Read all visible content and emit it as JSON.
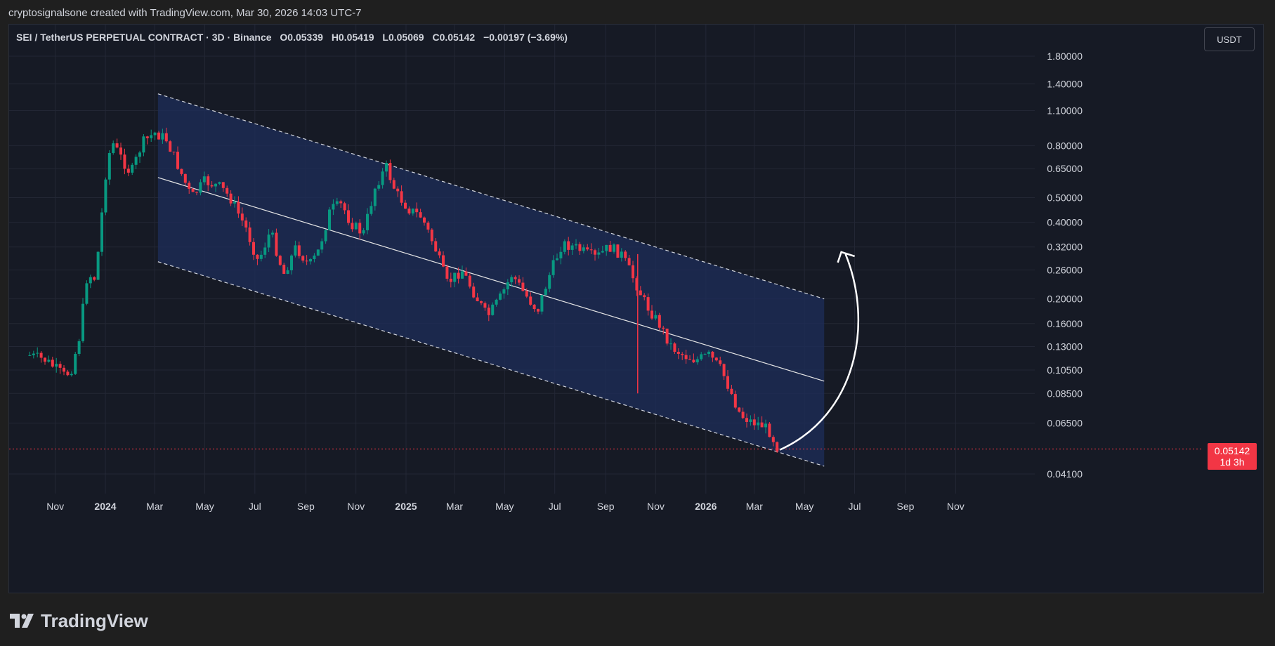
{
  "header": {
    "attribution": "cryptosignalsone created with TradingView.com, Mar 30, 2026 14:03 UTC-7"
  },
  "legend": {
    "symbol": "SEI / TetherUS PERPETUAL CONTRACT · 3D · Binance",
    "open": "O0.05339",
    "high": "H0.05419",
    "low": "L0.05069",
    "close": "C0.05142",
    "change": "−0.00197 (−3.69%)"
  },
  "currency": "USDT",
  "last_price": {
    "value": "0.05142",
    "countdown": "1d 3h"
  },
  "branding": {
    "logo_text": "TradingView"
  },
  "colors": {
    "up": "#089981",
    "down": "#f23645",
    "channel": "#1e2d5a",
    "background": "#161a25"
  },
  "chart_data": {
    "type": "candlestick",
    "y_scale": "log",
    "y_ticks": [
      "1.80000",
      "1.40000",
      "1.10000",
      "0.80000",
      "0.65000",
      "0.50000",
      "0.40000",
      "0.32000",
      "0.26000",
      "0.20000",
      "0.16000",
      "0.13000",
      "0.10500",
      "0.08500",
      "0.06500",
      "0.04100"
    ],
    "x_ticks": [
      "Nov",
      "2024",
      "Mar",
      "May",
      "Jul",
      "Sep",
      "Nov",
      "2025",
      "Mar",
      "May",
      "Jul",
      "Sep",
      "Nov",
      "2026",
      "Mar",
      "May",
      "Jul",
      "Sep",
      "Nov"
    ],
    "price_path": [
      {
        "date": "2023-10-01",
        "price": 0.12
      },
      {
        "date": "2023-10-20",
        "price": 0.115
      },
      {
        "date": "2023-11-12",
        "price": 0.1
      },
      {
        "date": "2023-11-20",
        "price": 0.104
      },
      {
        "date": "2023-11-30",
        "price": 0.14
      },
      {
        "date": "2023-12-10",
        "price": 0.25
      },
      {
        "date": "2023-12-20",
        "price": 0.24
      },
      {
        "date": "2024-01-03",
        "price": 0.7
      },
      {
        "date": "2024-01-10",
        "price": 0.82
      },
      {
        "date": "2024-01-20",
        "price": 0.72
      },
      {
        "date": "2024-02-01",
        "price": 0.62
      },
      {
        "date": "2024-02-15",
        "price": 0.82
      },
      {
        "date": "2024-03-01",
        "price": 0.9
      },
      {
        "date": "2024-03-15",
        "price": 0.85
      },
      {
        "date": "2024-03-25",
        "price": 0.72
      },
      {
        "date": "2024-04-15",
        "price": 0.5
      },
      {
        "date": "2024-05-01",
        "price": 0.58
      },
      {
        "date": "2024-05-20",
        "price": 0.55
      },
      {
        "date": "2024-06-01",
        "price": 0.5
      },
      {
        "date": "2024-06-20",
        "price": 0.38
      },
      {
        "date": "2024-07-05",
        "price": 0.28
      },
      {
        "date": "2024-07-20",
        "price": 0.37
      },
      {
        "date": "2024-08-05",
        "price": 0.25
      },
      {
        "date": "2024-08-20",
        "price": 0.32
      },
      {
        "date": "2024-09-05",
        "price": 0.27
      },
      {
        "date": "2024-09-15",
        "price": 0.3
      },
      {
        "date": "2024-10-01",
        "price": 0.45
      },
      {
        "date": "2024-10-15",
        "price": 0.47
      },
      {
        "date": "2024-10-25",
        "price": 0.4
      },
      {
        "date": "2024-11-10",
        "price": 0.36
      },
      {
        "date": "2024-11-25",
        "price": 0.56
      },
      {
        "date": "2024-12-08",
        "price": 0.66
      },
      {
        "date": "2024-12-20",
        "price": 0.52
      },
      {
        "date": "2025-01-05",
        "price": 0.45
      },
      {
        "date": "2025-01-20",
        "price": 0.42
      },
      {
        "date": "2025-02-05",
        "price": 0.32
      },
      {
        "date": "2025-02-20",
        "price": 0.23
      },
      {
        "date": "2025-03-10",
        "price": 0.26
      },
      {
        "date": "2025-03-25",
        "price": 0.21
      },
      {
        "date": "2025-04-10",
        "price": 0.17
      },
      {
        "date": "2025-04-25",
        "price": 0.2
      },
      {
        "date": "2025-05-10",
        "price": 0.25
      },
      {
        "date": "2025-05-25",
        "price": 0.21
      },
      {
        "date": "2025-06-10",
        "price": 0.18
      },
      {
        "date": "2025-06-25",
        "price": 0.25
      },
      {
        "date": "2025-07-10",
        "price": 0.33
      },
      {
        "date": "2025-07-25",
        "price": 0.32
      },
      {
        "date": "2025-08-10",
        "price": 0.3
      },
      {
        "date": "2025-08-20",
        "price": 0.29
      },
      {
        "date": "2025-09-05",
        "price": 0.32
      },
      {
        "date": "2025-09-20",
        "price": 0.3
      },
      {
        "date": "2025-10-05",
        "price": 0.24
      },
      {
        "date": "2025-10-20",
        "price": 0.19
      },
      {
        "date": "2025-11-05",
        "price": 0.16
      },
      {
        "date": "2025-11-20",
        "price": 0.13
      },
      {
        "date": "2025-12-05",
        "price": 0.12
      },
      {
        "date": "2025-12-20",
        "price": 0.115
      },
      {
        "date": "2026-01-05",
        "price": 0.12
      },
      {
        "date": "2026-01-20",
        "price": 0.105
      },
      {
        "date": "2026-02-01",
        "price": 0.085
      },
      {
        "date": "2026-02-12",
        "price": 0.07
      },
      {
        "date": "2026-02-25",
        "price": 0.066
      },
      {
        "date": "2026-03-10",
        "price": 0.064
      },
      {
        "date": "2026-03-20",
        "price": 0.06
      },
      {
        "date": "2026-03-30",
        "price": 0.0514
      }
    ],
    "channel": {
      "start_date": "2024-03-05",
      "end_date": "2026-05-25",
      "upper": [
        1.28,
        0.2
      ],
      "mid": [
        0.6,
        0.095
      ],
      "lower": [
        0.28,
        0.044
      ]
    },
    "last_price_line": 0.05142,
    "projection_arrow": {
      "from": {
        "date": "2026-04-01",
        "price": 0.051
      },
      "to": {
        "date": "2026-06-20",
        "price": 0.3
      }
    }
  }
}
